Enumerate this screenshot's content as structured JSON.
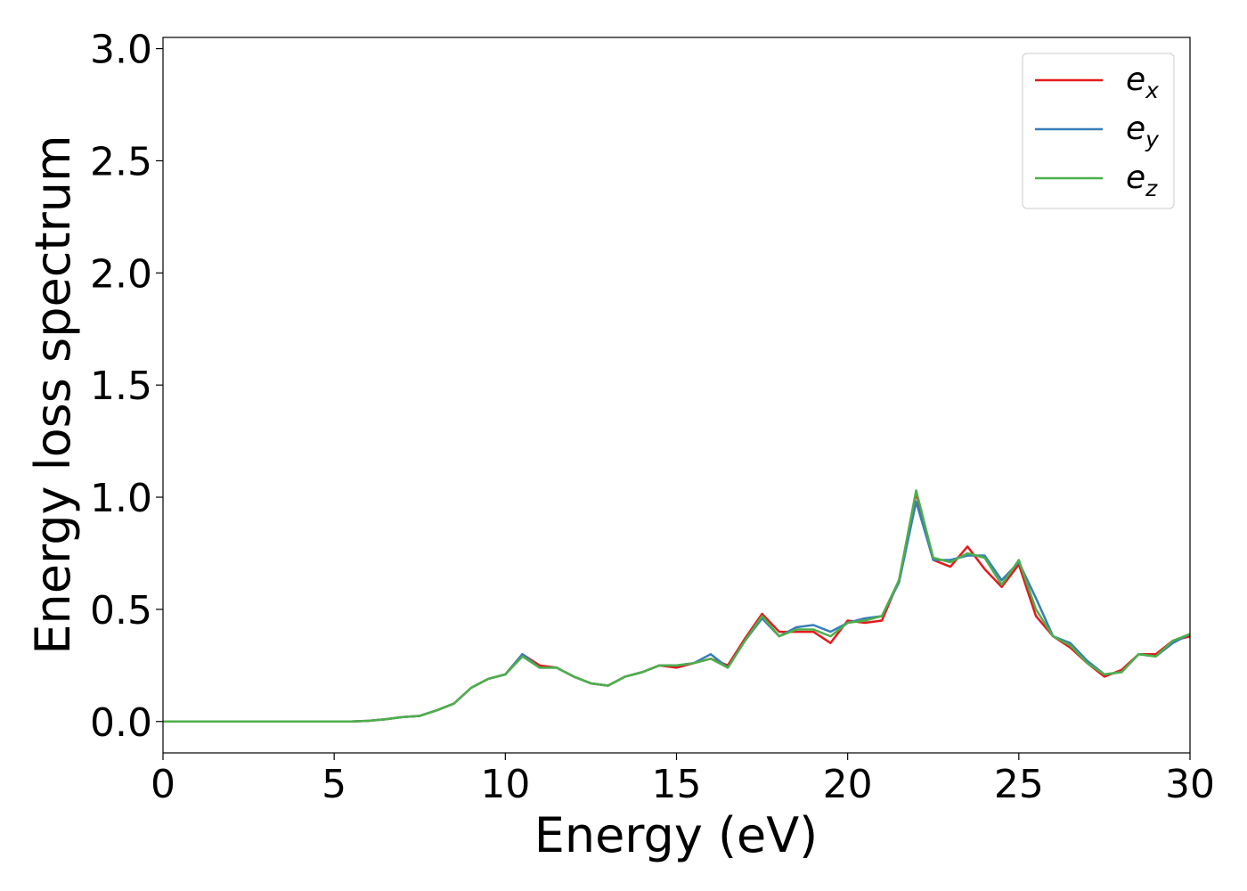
{
  "chart_data": {
    "type": "line",
    "xlabel": "Energy (eV)",
    "ylabel": "Energy loss spectrum",
    "x": [
      0,
      0.5,
      1,
      1.5,
      2,
      2.5,
      3,
      3.5,
      4,
      4.5,
      5,
      5.5,
      6,
      6.5,
      7,
      7.5,
      8,
      8.5,
      9,
      9.5,
      10,
      10.5,
      11,
      11.5,
      12,
      12.5,
      13,
      13.5,
      14,
      14.5,
      15,
      15.5,
      16,
      16.5,
      17,
      17.5,
      18,
      18.5,
      19,
      19.5,
      20,
      20.5,
      21,
      21.5,
      22,
      22.5,
      23,
      23.5,
      24,
      24.5,
      25,
      25.5,
      26,
      26.5,
      27,
      27.5,
      28,
      28.5,
      29,
      29.5,
      30
    ],
    "series": [
      {
        "name": "e_x",
        "color": "#e41a1c",
        "values": [
          0,
          0,
          0,
          0,
          0,
          0,
          0,
          0,
          0,
          0,
          0,
          0,
          0.003,
          0.01,
          0.02,
          0.025,
          0.05,
          0.08,
          0.15,
          0.19,
          0.21,
          0.3,
          0.25,
          0.24,
          0.2,
          0.17,
          0.16,
          0.2,
          0.22,
          0.25,
          0.24,
          0.26,
          0.28,
          0.25,
          0.37,
          0.48,
          0.4,
          0.4,
          0.4,
          0.35,
          0.45,
          0.44,
          0.45,
          0.63,
          1.02,
          0.72,
          0.69,
          0.78,
          0.68,
          0.6,
          0.7,
          0.47,
          0.38,
          0.33,
          0.26,
          0.2,
          0.23,
          0.3,
          0.3,
          0.36,
          0.38
        ]
      },
      {
        "name": "e_y",
        "color": "#377eb8",
        "values": [
          0,
          0,
          0,
          0,
          0,
          0,
          0,
          0,
          0,
          0,
          0,
          0,
          0.003,
          0.01,
          0.02,
          0.025,
          0.05,
          0.08,
          0.15,
          0.19,
          0.21,
          0.3,
          0.24,
          0.24,
          0.2,
          0.17,
          0.16,
          0.2,
          0.22,
          0.25,
          0.25,
          0.26,
          0.3,
          0.24,
          0.36,
          0.46,
          0.38,
          0.42,
          0.43,
          0.4,
          0.44,
          0.46,
          0.47,
          0.62,
          0.98,
          0.72,
          0.72,
          0.74,
          0.74,
          0.63,
          0.71,
          0.55,
          0.38,
          0.35,
          0.27,
          0.21,
          0.22,
          0.3,
          0.29,
          0.35,
          0.39
        ]
      },
      {
        "name": "e_z",
        "color": "#4daf4a",
        "values": [
          0,
          0,
          0,
          0,
          0,
          0,
          0,
          0,
          0,
          0,
          0,
          0,
          0.003,
          0.01,
          0.02,
          0.025,
          0.05,
          0.08,
          0.15,
          0.19,
          0.21,
          0.29,
          0.24,
          0.24,
          0.2,
          0.17,
          0.16,
          0.2,
          0.22,
          0.25,
          0.25,
          0.26,
          0.28,
          0.24,
          0.36,
          0.47,
          0.38,
          0.41,
          0.41,
          0.38,
          0.44,
          0.45,
          0.47,
          0.63,
          1.03,
          0.73,
          0.71,
          0.75,
          0.73,
          0.61,
          0.72,
          0.5,
          0.38,
          0.34,
          0.26,
          0.21,
          0.22,
          0.3,
          0.29,
          0.36,
          0.39
        ]
      }
    ],
    "xlim": [
      0,
      30
    ],
    "xticks": [
      0,
      5,
      10,
      15,
      20,
      25,
      30
    ],
    "ylim": [
      -0.14,
      3.05
    ],
    "yticks": [
      {
        "value": 0,
        "label": "0.0"
      },
      0.5,
      {
        "value": 1,
        "label": "1.0"
      },
      1.5,
      {
        "value": 2,
        "label": "2.0"
      },
      2.5,
      {
        "value": 3,
        "label": "3.0"
      }
    ],
    "legend": "upper right"
  }
}
